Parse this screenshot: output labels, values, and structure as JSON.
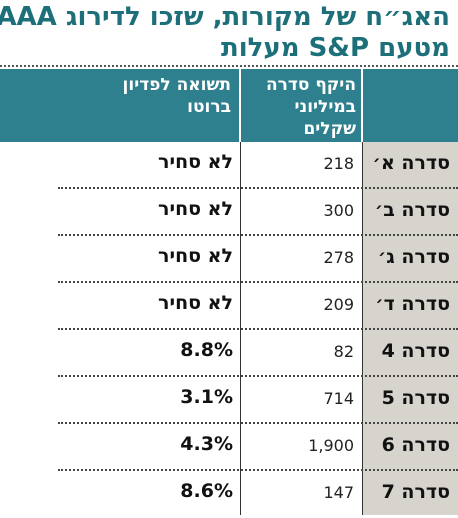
{
  "title": {
    "line1": "האג״ח של מקורות, שזכו לדירוג AAA",
    "line2": "מטעם S&P מעלות"
  },
  "table": {
    "headers": {
      "series": "",
      "size": [
        "היקף סדרה",
        "במיליוני",
        "שקלים"
      ],
      "yield": [
        "תשואה לפדיון",
        "ברוטו"
      ]
    },
    "rows": [
      {
        "series": "סדרה א׳",
        "size": "218",
        "yield": "לא סחיר"
      },
      {
        "series": "סדרה ב׳",
        "size": "300",
        "yield": "לא סחיר"
      },
      {
        "series": "סדרה ג׳",
        "size": "278",
        "yield": "לא סחיר"
      },
      {
        "series": "סדרה ד׳",
        "size": "209",
        "yield": "לא סחיר"
      },
      {
        "series": "סדרה 4",
        "size": "82",
        "yield": "8.8%"
      },
      {
        "series": "סדרה 5",
        "size": "714",
        "yield": "3.1%"
      },
      {
        "series": "סדרה 6",
        "size": "1,900",
        "yield": "4.3%"
      },
      {
        "series": "סדרה 7",
        "size": "147",
        "yield": "8.6%"
      }
    ]
  },
  "colors": {
    "header_bg": "#2e808e",
    "title": "#1d6f7a",
    "first_column_bg": "#d7d4cd"
  }
}
